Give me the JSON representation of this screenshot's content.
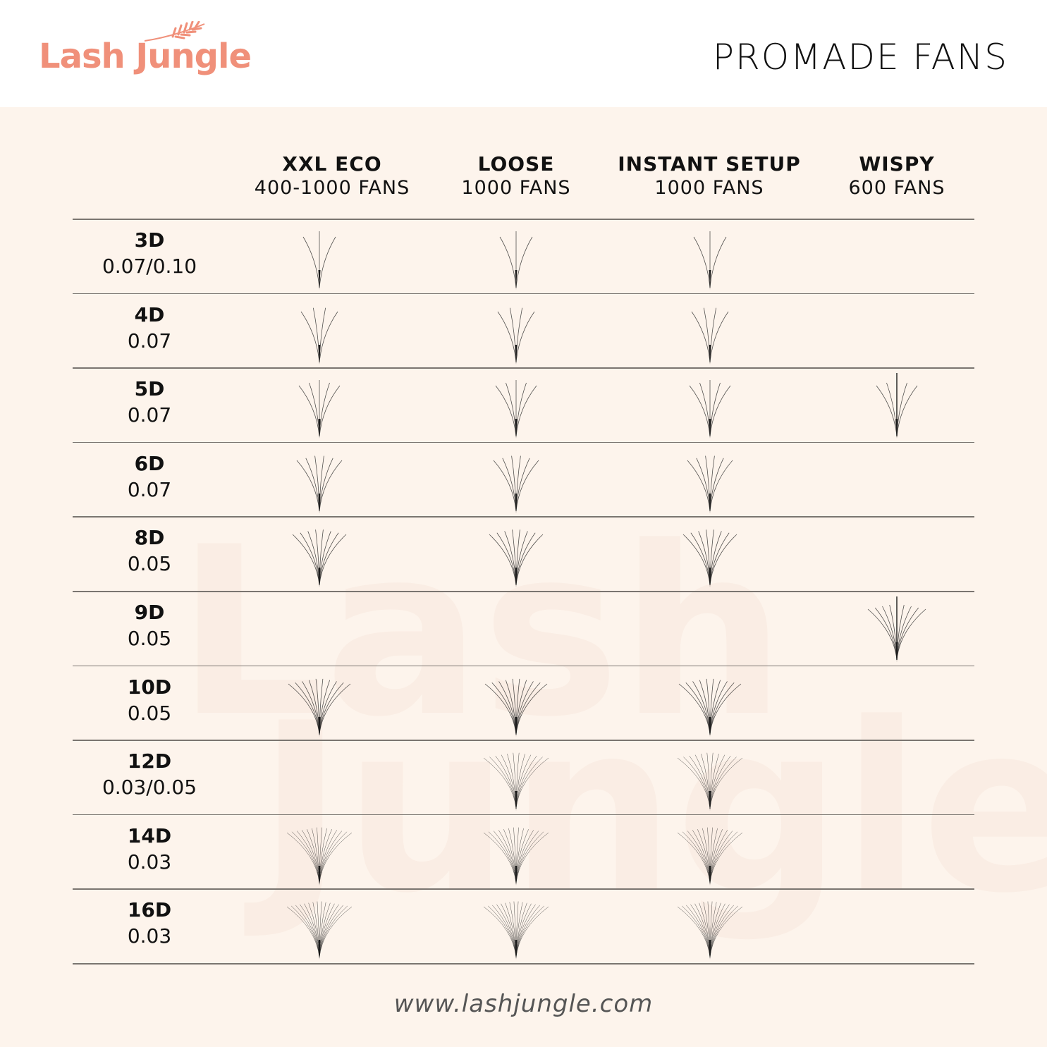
{
  "brand": {
    "logo_text": "Lash Jungle",
    "color": "#f0907a"
  },
  "title": "PROMADE FANS",
  "columns": [
    {
      "name": "XXL ECO",
      "sub": "400-1000 FANS"
    },
    {
      "name": "LOOSE",
      "sub": "1000 FANS"
    },
    {
      "name": "INSTANT SETUP",
      "sub": "1000 FANS"
    },
    {
      "name": "WISPY",
      "sub": "600 FANS"
    }
  ],
  "rows": [
    {
      "type": "3D",
      "thickness": "0.07/0.10",
      "available": [
        true,
        true,
        true,
        false
      ]
    },
    {
      "type": "4D",
      "thickness": "0.07",
      "available": [
        true,
        true,
        true,
        false
      ]
    },
    {
      "type": "5D",
      "thickness": "0.07",
      "available": [
        true,
        true,
        true,
        true
      ]
    },
    {
      "type": "6D",
      "thickness": "0.07",
      "available": [
        true,
        true,
        true,
        false
      ]
    },
    {
      "type": "8D",
      "thickness": "0.05",
      "available": [
        true,
        true,
        true,
        false
      ]
    },
    {
      "type": "9D",
      "thickness": "0.05",
      "available": [
        false,
        false,
        false,
        true
      ]
    },
    {
      "type": "10D",
      "thickness": "0.05",
      "available": [
        true,
        true,
        true,
        false
      ]
    },
    {
      "type": "12D",
      "thickness": "0.03/0.05",
      "available": [
        false,
        true,
        true,
        false
      ]
    },
    {
      "type": "14D",
      "thickness": "0.03",
      "available": [
        true,
        true,
        true,
        false
      ]
    },
    {
      "type": "16D",
      "thickness": "0.03",
      "available": [
        true,
        true,
        true,
        false
      ]
    }
  ],
  "footer": "www.lashjungle.com",
  "colors": {
    "background": "#fdf4ec",
    "lash": "#1a1a1a",
    "rule": "#7a7570"
  }
}
